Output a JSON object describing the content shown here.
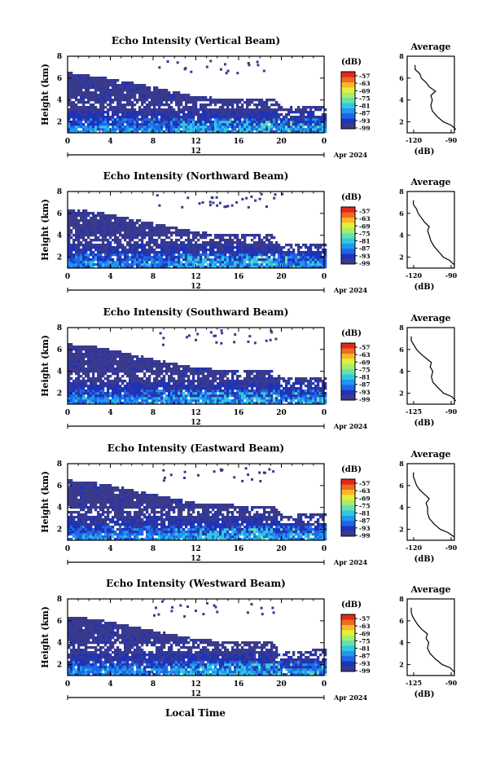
{
  "figure": {
    "xlabel_bottom": "Local Time",
    "date_label": "Apr 2024",
    "day_label": "12",
    "ylabel": "Height (km)",
    "cb_unit": "(dB)",
    "avg_title": "Average",
    "avg_xlabel": "(dB)",
    "colors": [
      "#3a3a8c",
      "#1f33b8",
      "#1f66e6",
      "#1f99f0",
      "#33c8e0",
      "#66e0b0",
      "#a6ee6e",
      "#e6ee3a",
      "#f8b82a",
      "#f06a20",
      "#e02a1a"
    ]
  },
  "chart_data": [
    {
      "type": "heatmap",
      "title": "Echo Intensity (Vertical Beam)",
      "x_ticks": [
        "0",
        "4",
        "8",
        "12",
        "16",
        "20",
        "0"
      ],
      "xlim_hours": [
        0,
        24
      ],
      "y_ticks": [
        "2",
        "4",
        "6",
        "8"
      ],
      "ylim_km": [
        1,
        8
      ],
      "colorbar_ticks": [
        "-57",
        "-63",
        "-69",
        "-75",
        "-81",
        "-87",
        "-93",
        "-99"
      ],
      "layer_top_km": [
        [
          0,
          6.4
        ],
        [
          3,
          6.0
        ],
        [
          8,
          5.1
        ],
        [
          12,
          4.2
        ],
        [
          16,
          4.0
        ],
        [
          19,
          4.1
        ],
        [
          20,
          3.2
        ],
        [
          24,
          3.4
        ]
      ],
      "average_profile": {
        "x_ticks": [
          "-120",
          "-90"
        ],
        "xlim_db": [
          -120,
          -90
        ],
        "y_ticks": [
          "2",
          "4",
          "6",
          "8"
        ],
        "ylim_km": [
          1,
          8
        ],
        "height_km": [
          1.3,
          1.7,
          2.0,
          2.5,
          3.0,
          3.5,
          4.0,
          4.4,
          4.8,
          5.2,
          5.6,
          6.0,
          6.4,
          6.8,
          7.2
        ],
        "db": [
          -89,
          -92,
          -97,
          -101,
          -104,
          -105,
          -104,
          -105,
          -102,
          -106,
          -108,
          -111,
          -112,
          -115,
          -115
        ]
      }
    },
    {
      "type": "heatmap",
      "title": "Echo Intensity (Northward Beam)",
      "x_ticks": [
        "0",
        "4",
        "8",
        "12",
        "16",
        "20",
        "0"
      ],
      "xlim_hours": [
        0,
        24
      ],
      "y_ticks": [
        "2",
        "4",
        "6",
        "8"
      ],
      "ylim_km": [
        1,
        8
      ],
      "colorbar_ticks": [
        "-57",
        "-63",
        "-69",
        "-75",
        "-81",
        "-87",
        "-93",
        "-99"
      ],
      "layer_top_km": [
        [
          0,
          6.3
        ],
        [
          3,
          6.0
        ],
        [
          8,
          5.0
        ],
        [
          12,
          4.2
        ],
        [
          16,
          3.9
        ],
        [
          19,
          4.0
        ],
        [
          20,
          3.0
        ],
        [
          24,
          3.2
        ]
      ],
      "average_profile": {
        "x_ticks": [
          "-120",
          "-90"
        ],
        "xlim_db": [
          -120,
          -90
        ],
        "y_ticks": [
          "2",
          "4",
          "6",
          "8"
        ],
        "ylim_km": [
          1,
          8
        ],
        "height_km": [
          1.3,
          1.7,
          2.0,
          2.5,
          3.0,
          3.5,
          4.0,
          4.4,
          4.8,
          5.2,
          5.6,
          6.0,
          6.4,
          6.8,
          7.2
        ],
        "db": [
          -90,
          -93,
          -97,
          -100,
          -103,
          -105,
          -106,
          -107,
          -106,
          -109,
          -111,
          -113,
          -114,
          -116,
          -116
        ]
      }
    },
    {
      "type": "heatmap",
      "title": "Echo Intensity (Southward Beam)",
      "x_ticks": [
        "0",
        "4",
        "8",
        "12",
        "16",
        "20",
        "0"
      ],
      "xlim_hours": [
        0,
        24
      ],
      "y_ticks": [
        "2",
        "4",
        "6",
        "8"
      ],
      "ylim_km": [
        1,
        8
      ],
      "colorbar_ticks": [
        "-57",
        "-63",
        "-69",
        "-75",
        "-81",
        "-87",
        "-93",
        "-99"
      ],
      "layer_top_km": [
        [
          0,
          6.4
        ],
        [
          3,
          6.1
        ],
        [
          8,
          5.0
        ],
        [
          12,
          4.2
        ],
        [
          16,
          4.0
        ],
        [
          19,
          4.0
        ],
        [
          20,
          3.3
        ],
        [
          24,
          3.4
        ]
      ],
      "average_profile": {
        "x_ticks": [
          "-125",
          "-90"
        ],
        "xlim_db": [
          -125,
          -90
        ],
        "y_ticks": [
          "2",
          "4",
          "6",
          "8"
        ],
        "ylim_km": [
          1,
          8
        ],
        "height_km": [
          1.3,
          1.7,
          2.0,
          2.5,
          3.0,
          3.5,
          4.0,
          4.4,
          4.8,
          5.2,
          5.6,
          6.0,
          6.4,
          6.8,
          7.2
        ],
        "db": [
          -89,
          -92,
          -98,
          -102,
          -106,
          -107,
          -106,
          -108,
          -107,
          -111,
          -115,
          -118,
          -120,
          -122,
          -122
        ]
      }
    },
    {
      "type": "heatmap",
      "title": "Echo Intensity (Eastward Beam)",
      "x_ticks": [
        "0",
        "4",
        "8",
        "12",
        "16",
        "20",
        "0"
      ],
      "xlim_hours": [
        0,
        24
      ],
      "y_ticks": [
        "2",
        "4",
        "6",
        "8"
      ],
      "ylim_km": [
        1,
        8
      ],
      "colorbar_ticks": [
        "-57",
        "-63",
        "-69",
        "-75",
        "-81",
        "-87",
        "-93",
        "-99"
      ],
      "layer_top_km": [
        [
          0,
          6.4
        ],
        [
          3,
          6.1
        ],
        [
          8,
          5.1
        ],
        [
          12,
          4.3
        ],
        [
          16,
          4.1
        ],
        [
          19,
          4.1
        ],
        [
          20,
          3.2
        ],
        [
          24,
          3.3
        ]
      ],
      "average_profile": {
        "x_ticks": [
          "-120",
          "-90"
        ],
        "xlim_db": [
          -120,
          -90
        ],
        "y_ticks": [
          "2",
          "4",
          "6",
          "8"
        ],
        "ylim_km": [
          1,
          8
        ],
        "height_km": [
          1.3,
          1.7,
          2.0,
          2.5,
          3.0,
          3.5,
          4.0,
          4.4,
          4.8,
          5.2,
          5.6,
          6.0,
          6.4,
          6.8,
          7.2
        ],
        "db": [
          -90,
          -94,
          -99,
          -103,
          -106,
          -107,
          -107,
          -108,
          -106,
          -109,
          -112,
          -114,
          -115,
          -116,
          -116
        ]
      }
    },
    {
      "type": "heatmap",
      "title": "Echo Intensity (Westward Beam)",
      "x_ticks": [
        "0",
        "4",
        "8",
        "12",
        "16",
        "20",
        "0"
      ],
      "xlim_hours": [
        0,
        24
      ],
      "y_ticks": [
        "2",
        "4",
        "6",
        "8"
      ],
      "ylim_km": [
        1,
        8
      ],
      "colorbar_ticks": [
        "-57",
        "-63",
        "-69",
        "-75",
        "-81",
        "-87",
        "-93",
        "-99"
      ],
      "layer_top_km": [
        [
          0,
          6.3
        ],
        [
          3,
          6.0
        ],
        [
          8,
          5.0
        ],
        [
          12,
          4.2
        ],
        [
          16,
          4.0
        ],
        [
          19,
          4.0
        ],
        [
          20,
          3.1
        ],
        [
          24,
          3.3
        ]
      ],
      "average_profile": {
        "x_ticks": [
          "-125",
          "-90"
        ],
        "xlim_db": [
          -125,
          -90
        ],
        "y_ticks": [
          "2",
          "4",
          "6",
          "8"
        ],
        "ylim_km": [
          1,
          8
        ],
        "height_km": [
          1.3,
          1.7,
          2.0,
          2.5,
          3.0,
          3.5,
          4.0,
          4.4,
          4.8,
          5.2,
          5.6,
          6.0,
          6.4,
          6.8,
          7.2
        ],
        "db": [
          -90,
          -93,
          -99,
          -104,
          -108,
          -110,
          -109,
          -111,
          -110,
          -114,
          -117,
          -119,
          -121,
          -122,
          -122
        ]
      }
    }
  ]
}
